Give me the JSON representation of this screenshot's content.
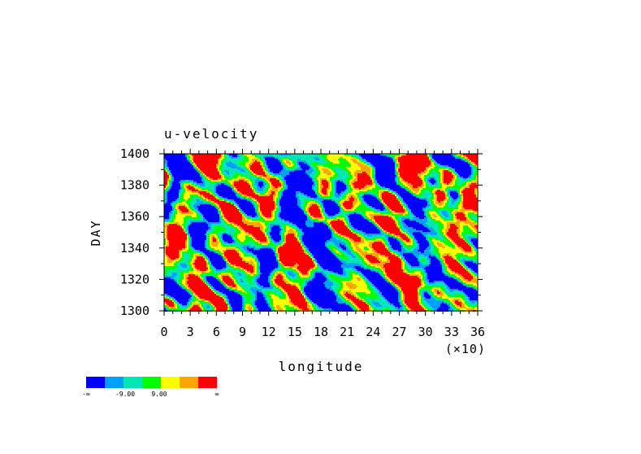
{
  "chart_data": {
    "type": "heatmap",
    "title": "u-velocity",
    "xlabel": "longitude",
    "ylabel": "DAY",
    "x_scale_note": "(×10)",
    "x_ticks": [
      0,
      3,
      6,
      9,
      12,
      15,
      18,
      21,
      24,
      27,
      30,
      33,
      36
    ],
    "y_ticks": [
      1300,
      1320,
      1340,
      1360,
      1380,
      1400
    ],
    "xlim": [
      0,
      36
    ],
    "ylim": [
      1300,
      1400
    ],
    "colorbar": {
      "colors": [
        "#0000ff",
        "#00a0ff",
        "#00e6b4",
        "#00ff00",
        "#ffff00",
        "#ffa500",
        "#ff0000"
      ],
      "labels": [
        "-∞",
        "-9.00",
        "9.00",
        "∞"
      ]
    }
  }
}
